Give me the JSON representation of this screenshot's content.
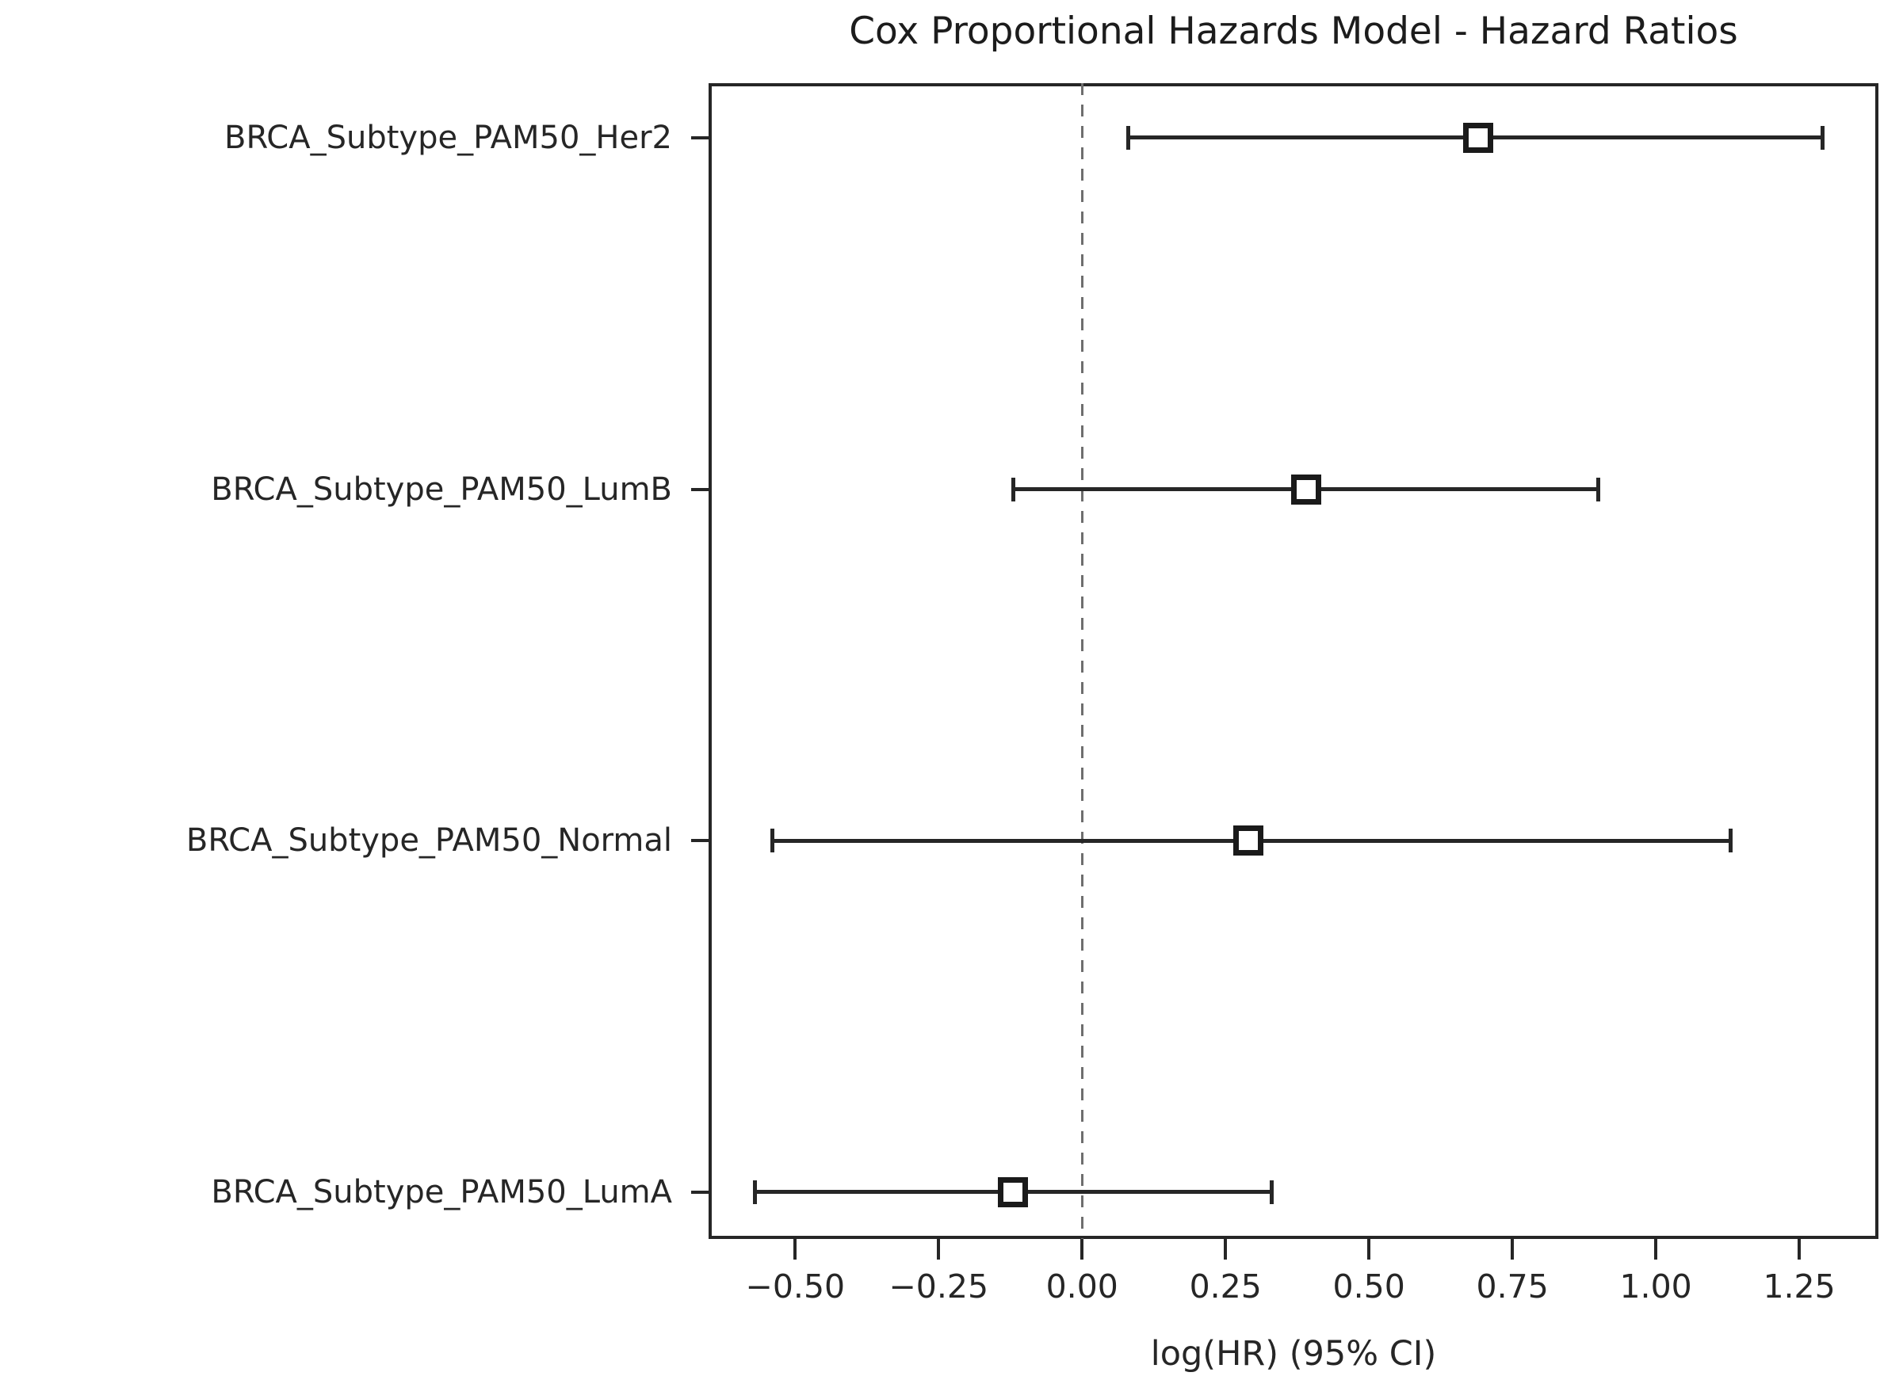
{
  "figure": {
    "background": "#ffffff",
    "text_color": "#262626",
    "line_color": "#262626",
    "ref_line_color": "#6e6e6e"
  },
  "chart_data": {
    "type": "scatter",
    "subtype": "forest-plot-errorbar",
    "title": "Cox Proportional Hazards Model - Hazard Ratios",
    "xlabel": "log(HR) (95% CI)",
    "ylabel": "",
    "xlim": [
      -0.651,
      1.388
    ],
    "ylim": [
      -0.133,
      3.155
    ],
    "grid": false,
    "legend": "none",
    "reference_line": {
      "x": 0.0,
      "style": "dashed",
      "color": "#6e6e6e"
    },
    "x_ticks": {
      "values": [
        -0.5,
        -0.25,
        0.0,
        0.25,
        0.5,
        0.75,
        1.0,
        1.25
      ],
      "labels": [
        "−0.50",
        "−0.25",
        "0.00",
        "0.25",
        "0.50",
        "0.75",
        "1.00",
        "1.25"
      ]
    },
    "marker": {
      "shape": "square",
      "fill": "#ffffff",
      "edge_color": "#1a1a1a"
    },
    "rows": [
      {
        "label": "BRCA_Subtype_PAM50_Her2",
        "y": 3,
        "log_hr": 0.69,
        "ci_low": 0.08,
        "ci_high": 1.29
      },
      {
        "label": "BRCA_Subtype_PAM50_LumB",
        "y": 2,
        "log_hr": 0.39,
        "ci_low": -0.12,
        "ci_high": 0.9
      },
      {
        "label": "BRCA_Subtype_PAM50_Normal",
        "y": 1,
        "log_hr": 0.29,
        "ci_low": -0.54,
        "ci_high": 1.13
      },
      {
        "label": "BRCA_Subtype_PAM50_LumA",
        "y": 0,
        "log_hr": -0.12,
        "ci_low": -0.57,
        "ci_high": 0.33
      }
    ]
  }
}
